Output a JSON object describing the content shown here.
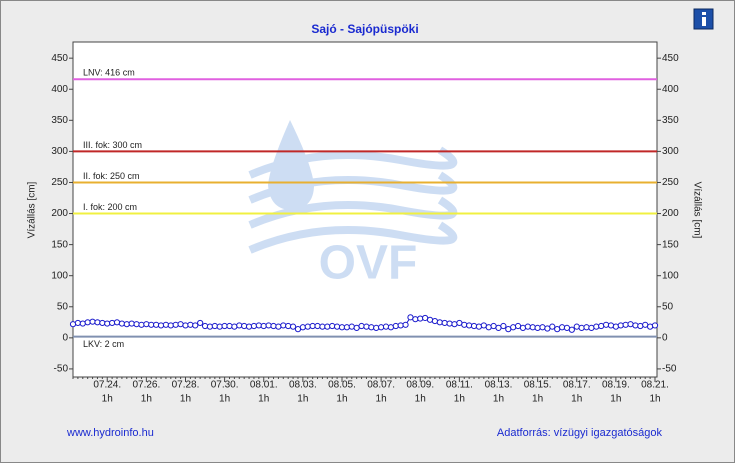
{
  "chart_data": {
    "type": "line",
    "title": "Sajó - Sajópüspöki",
    "y_label": "Vízállás [cm]",
    "y2_label": "Vízállás [cm]",
    "watermark": "OVF",
    "footer_left": "www.hydroinfo.hu",
    "footer_right": "Adatforrás: vízügyi igazgatóságok",
    "xtick_sublabel": "1h",
    "categories": [
      null,
      null,
      null,
      null,
      null,
      null,
      null,
      "07.24.",
      null,
      null,
      null,
      null,
      null,
      null,
      null,
      "07.26.",
      null,
      null,
      null,
      null,
      null,
      null,
      null,
      "07.28.",
      null,
      null,
      null,
      null,
      null,
      null,
      null,
      "07.30.",
      null,
      null,
      null,
      null,
      null,
      null,
      null,
      "08.01.",
      null,
      null,
      null,
      null,
      null,
      null,
      null,
      "08.03.",
      null,
      null,
      null,
      null,
      null,
      null,
      null,
      "08.05.",
      null,
      null,
      null,
      null,
      null,
      null,
      null,
      "08.07.",
      null,
      null,
      null,
      null,
      null,
      null,
      null,
      "08.09.",
      null,
      null,
      null,
      null,
      null,
      null,
      null,
      "08.11.",
      null,
      null,
      null,
      null,
      null,
      null,
      null,
      "08.13.",
      null,
      null,
      null,
      null,
      null,
      null,
      null,
      "08.15.",
      null,
      null,
      null,
      null,
      null,
      null,
      null,
      "08.17.",
      null,
      null,
      null,
      null,
      null,
      null,
      null,
      "08.19.",
      null,
      null,
      null,
      null,
      null,
      null,
      null,
      "08.21."
    ],
    "series": [
      {
        "color": "#1a1acc",
        "values": [
          22,
          24,
          23,
          25,
          26,
          25,
          24,
          23,
          24,
          25,
          23,
          22,
          23,
          22,
          21,
          22,
          21,
          21,
          20,
          21,
          20,
          21,
          22,
          20,
          21,
          20,
          24,
          19,
          18,
          19,
          18,
          19,
          19,
          18,
          20,
          19,
          18,
          19,
          20,
          19,
          20,
          19,
          18,
          20,
          19,
          18,
          14,
          17,
          18,
          19,
          19,
          18,
          18,
          19,
          18,
          17,
          17,
          18,
          16,
          19,
          18,
          17,
          16,
          17,
          18,
          17,
          19,
          20,
          21,
          33,
          30,
          31,
          32,
          29,
          27,
          25,
          24,
          23,
          22,
          24,
          21,
          20,
          19,
          18,
          20,
          17,
          19,
          16,
          19,
          14,
          17,
          19,
          16,
          18,
          17,
          16,
          17,
          15,
          18,
          14,
          17,
          16,
          13,
          18,
          16,
          17,
          16,
          18,
          19,
          21,
          20,
          18,
          20,
          21,
          22,
          20,
          19,
          21,
          18,
          20
        ]
      }
    ],
    "thresholds": [
      {
        "label": "LNV: 416 cm",
        "value": 416,
        "color": "#e060e0"
      },
      {
        "label": "III. fok: 300 cm",
        "value": 300,
        "color": "#c02828"
      },
      {
        "label": "II. fok: 250 cm",
        "value": 250,
        "color": "#e8b030"
      },
      {
        "label": "I. fok: 200 cm",
        "value": 200,
        "color": "#f0f040"
      },
      {
        "label": "LKV: 2 cm",
        "value": 2,
        "color": "#8090b0"
      }
    ],
    "ylim": [
      -63,
      476
    ],
    "yticks": [
      -50,
      0,
      50,
      100,
      150,
      200,
      250,
      300,
      350,
      400,
      450
    ],
    "grid": false
  }
}
